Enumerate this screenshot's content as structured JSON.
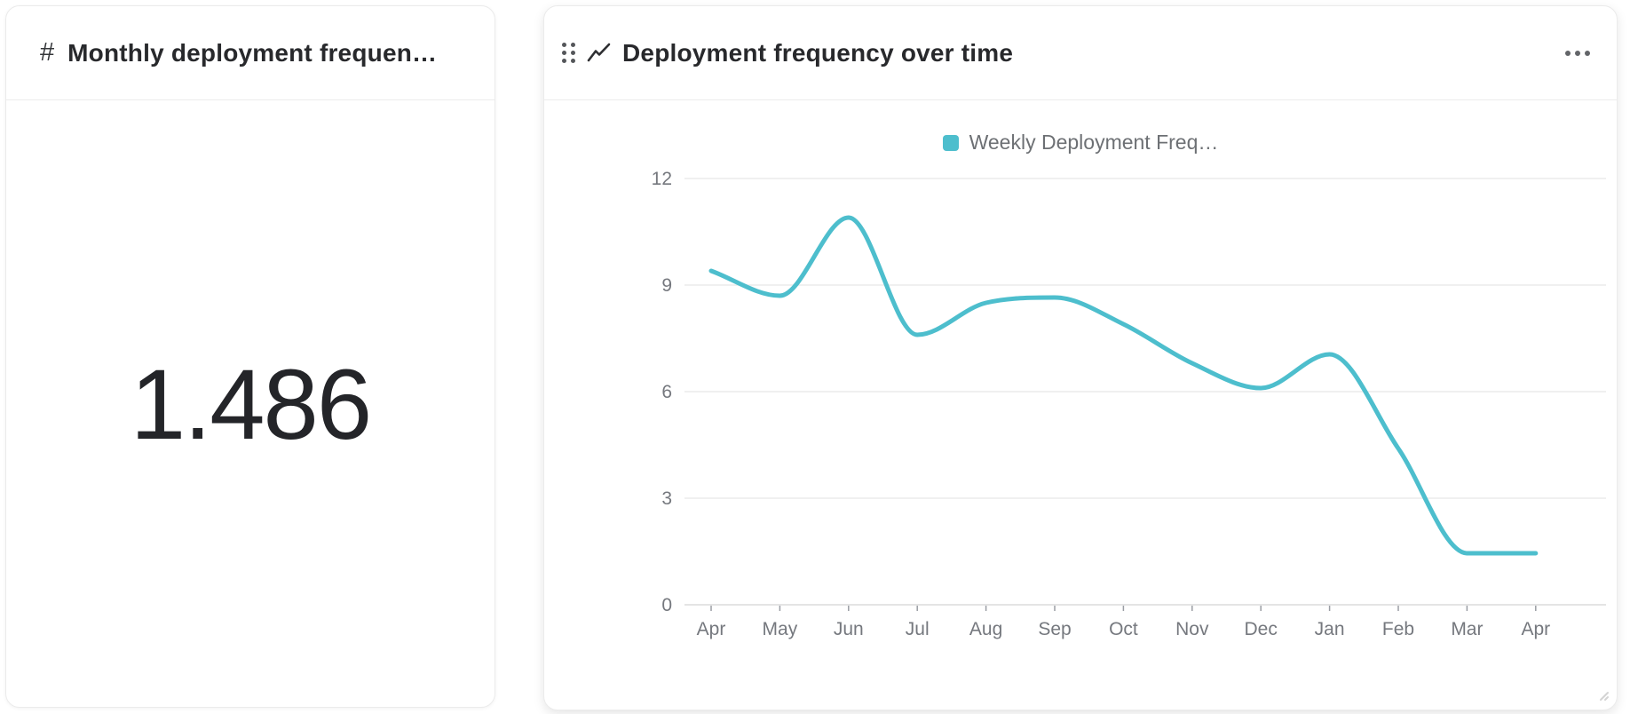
{
  "left_card": {
    "icon": "number-icon",
    "title": "Monthly deployment frequen…",
    "value": "1.486"
  },
  "right_card": {
    "icon": "line-chart-icon",
    "title": "Deployment frequency over time",
    "menu_icon": "ellipsis-icon"
  },
  "chart_data": {
    "type": "line",
    "title": "Deployment frequency over time",
    "x": [
      "Apr",
      "May",
      "Jun",
      "Jul",
      "Aug",
      "Sep",
      "Oct",
      "Nov",
      "Dec",
      "Jan",
      "Feb",
      "Mar",
      "Apr"
    ],
    "series": [
      {
        "name": "Weekly Deployment Freq…",
        "values": [
          9.4,
          8.7,
          10.9,
          7.6,
          8.5,
          8.65,
          7.9,
          6.8,
          6.1,
          7.05,
          4.4,
          1.45,
          1.45
        ]
      }
    ],
    "xlabel": "",
    "ylabel": "",
    "ylim": [
      0,
      12
    ],
    "yticks": [
      0,
      3,
      6,
      9,
      12
    ],
    "grid": true,
    "legend_position": "top",
    "line_color": "#4DBECD"
  },
  "colors": {
    "accent": "#4DBECD",
    "gridline": "#ececec",
    "axis_baseline": "#dcdcdc",
    "tick_text": "#75787e",
    "title_text": "#28292c"
  }
}
